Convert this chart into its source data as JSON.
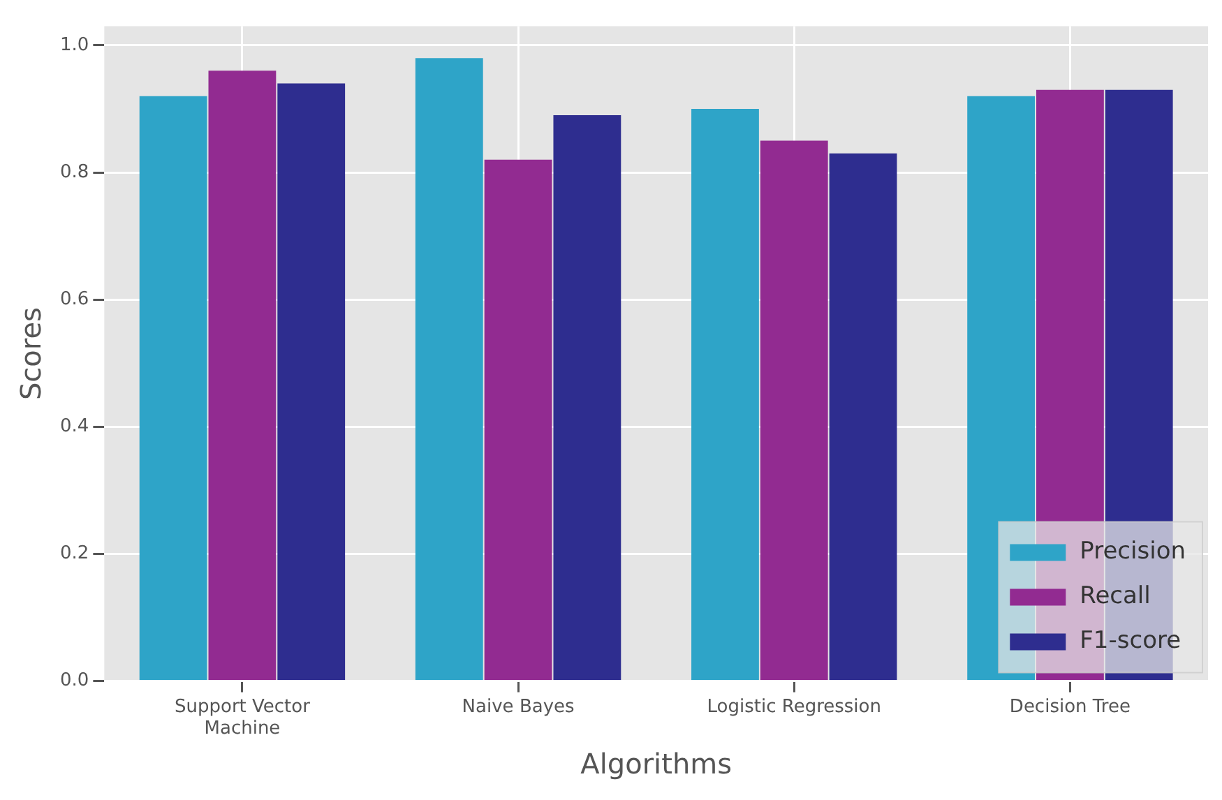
{
  "chart_data": {
    "type": "bar",
    "xlabel": "Algorithms",
    "ylabel": "Scores",
    "categories": [
      "Support Vector\nMachine",
      "Naive Bayes",
      "Logistic Regression",
      "Decision Tree"
    ],
    "series": [
      {
        "name": "Precision",
        "color": "#2ea4c8",
        "values": [
          0.92,
          0.98,
          0.9,
          0.92
        ]
      },
      {
        "name": "Recall",
        "color": "#922b91",
        "values": [
          0.96,
          0.82,
          0.85,
          0.93
        ]
      },
      {
        "name": "F1-score",
        "color": "#2e2d8f",
        "values": [
          0.94,
          0.89,
          0.83,
          0.93
        ]
      }
    ],
    "ylim": [
      0,
      1.03
    ],
    "yticks": [
      {
        "value": 0,
        "label": "0.0"
      },
      {
        "value": 0.2,
        "label": "0.2"
      },
      {
        "value": 0.4,
        "label": "0.4"
      },
      {
        "value": 0.6,
        "label": "0.6"
      },
      {
        "value": 0.8,
        "label": "0.8"
      },
      {
        "value": 1,
        "label": "1.0"
      }
    ],
    "grid": true,
    "legend": "bottom right"
  }
}
